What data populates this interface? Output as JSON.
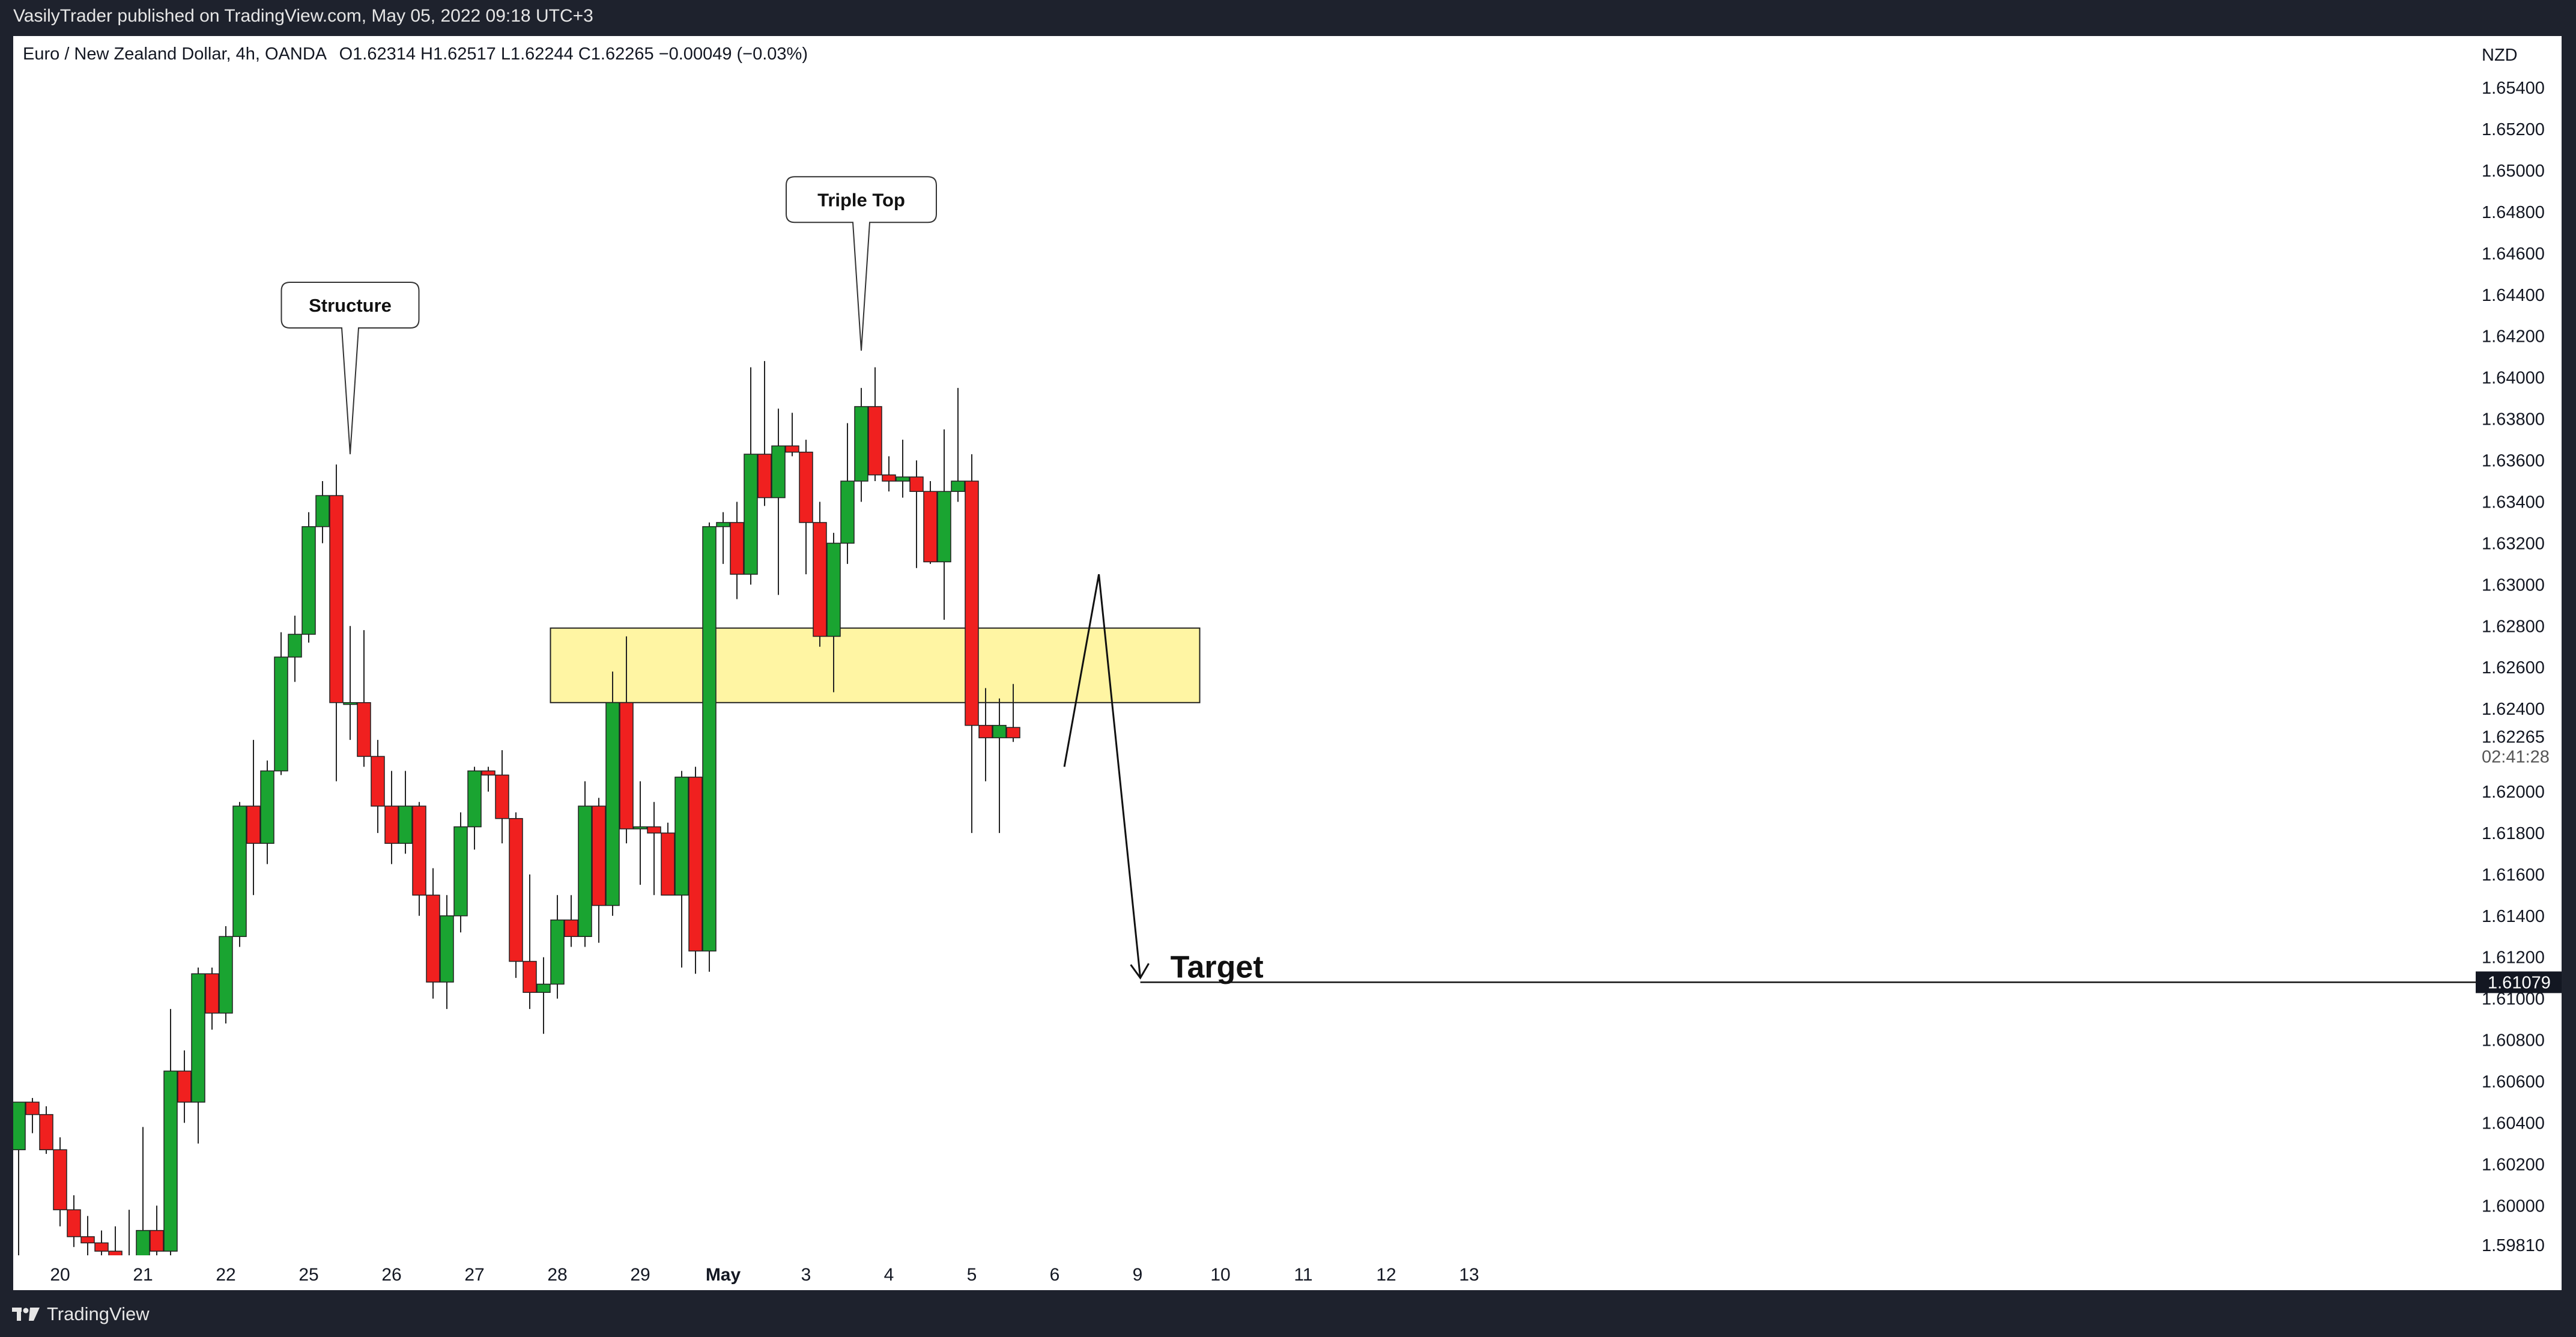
{
  "header": {
    "publish_line": "VasilyTrader published on TradingView.com, May 05, 2022 09:18 UTC+3"
  },
  "legend": {
    "symbol": "Euro / New Zealand Dollar, 4h, OANDA",
    "ohlc": "O1.62314  H1.62517  L1.62244  C1.62265  −0.00049 (−0.03%)"
  },
  "footer": {
    "brand": "TradingView",
    "logo_icon": "tradingview-logo-icon"
  },
  "colors": {
    "up": "#1aa431",
    "down": "#f0201f",
    "zone": "#fff5a3",
    "axis_text": "#131722"
  },
  "chart_data": {
    "type": "candlestick",
    "symbol": "EUR/NZD",
    "interval": "4h",
    "currency": "NZD",
    "ylim": [
      1.5976,
      1.6565
    ],
    "price_ticks": [
      "1.65400",
      "1.65200",
      "1.65000",
      "1.64800",
      "1.64600",
      "1.64400",
      "1.64200",
      "1.64000",
      "1.63800",
      "1.63600",
      "1.63400",
      "1.63200",
      "1.63000",
      "1.62800",
      "1.62600",
      "1.62400",
      "1.62000",
      "1.61800",
      "1.61600",
      "1.61400",
      "1.61200",
      "1.61000",
      "1.60800",
      "1.60600",
      "1.60400",
      "1.60200",
      "1.60000",
      "1.59810"
    ],
    "date_ticks": [
      {
        "label": "20",
        "bar": 3
      },
      {
        "label": "21",
        "bar": 9
      },
      {
        "label": "22",
        "bar": 15
      },
      {
        "label": "25",
        "bar": 21
      },
      {
        "label": "26",
        "bar": 27
      },
      {
        "label": "27",
        "bar": 33
      },
      {
        "label": "28",
        "bar": 39
      },
      {
        "label": "29",
        "bar": 45
      },
      {
        "label": "May",
        "bar": 51,
        "bold": true
      },
      {
        "label": "3",
        "bar": 57
      },
      {
        "label": "4",
        "bar": 63
      },
      {
        "label": "5",
        "bar": 69
      },
      {
        "label": "6",
        "bar": 75
      },
      {
        "label": "9",
        "bar": 81
      },
      {
        "label": "10",
        "bar": 87
      },
      {
        "label": "11",
        "bar": 93
      },
      {
        "label": "12",
        "bar": 99
      },
      {
        "label": "13",
        "bar": 105
      }
    ],
    "candles": [
      [
        1.6027,
        1.605,
        1.5975,
        1.605
      ],
      [
        1.605,
        1.6052,
        1.6035,
        1.6044
      ],
      [
        1.6044,
        1.6048,
        1.6025,
        1.6027
      ],
      [
        1.6027,
        1.6033,
        1.599,
        1.5998
      ],
      [
        1.5998,
        1.6005,
        1.598,
        1.5985
      ],
      [
        1.5985,
        1.5995,
        1.5975,
        1.5982
      ],
      [
        1.5982,
        1.5988,
        1.5975,
        1.5978
      ],
      [
        1.5978,
        1.599,
        1.597,
        1.5975
      ],
      [
        1.5975,
        1.5998,
        1.5968,
        1.5975
      ],
      [
        1.5975,
        1.6038,
        1.597,
        1.5988
      ],
      [
        1.5988,
        1.6,
        1.5975,
        1.5978
      ],
      [
        1.5978,
        1.6095,
        1.5975,
        1.6065
      ],
      [
        1.6065,
        1.6075,
        1.604,
        1.605
      ],
      [
        1.605,
        1.6115,
        1.603,
        1.6112
      ],
      [
        1.6112,
        1.6115,
        1.6085,
        1.6093
      ],
      [
        1.6093,
        1.6135,
        1.6088,
        1.613
      ],
      [
        1.613,
        1.6195,
        1.6125,
        1.6193
      ],
      [
        1.6193,
        1.6225,
        1.615,
        1.6175
      ],
      [
        1.6175,
        1.6215,
        1.6165,
        1.621
      ],
      [
        1.621,
        1.6277,
        1.6208,
        1.6265
      ],
      [
        1.6265,
        1.6285,
        1.6253,
        1.6276
      ],
      [
        1.6276,
        1.6335,
        1.6272,
        1.6328
      ],
      [
        1.6328,
        1.635,
        1.632,
        1.6343
      ],
      [
        1.6343,
        1.6358,
        1.6205,
        1.6243
      ],
      [
        1.6243,
        1.628,
        1.6225,
        1.6243
      ],
      [
        1.6243,
        1.6278,
        1.6212,
        1.6217
      ],
      [
        1.6217,
        1.6225,
        1.618,
        1.6193
      ],
      [
        1.6193,
        1.621,
        1.6165,
        1.6175
      ],
      [
        1.6175,
        1.621,
        1.617,
        1.6193
      ],
      [
        1.6193,
        1.6195,
        1.614,
        1.615
      ],
      [
        1.615,
        1.6163,
        1.61,
        1.6108
      ],
      [
        1.6108,
        1.615,
        1.6095,
        1.614
      ],
      [
        1.614,
        1.619,
        1.6132,
        1.6183
      ],
      [
        1.6183,
        1.6212,
        1.6172,
        1.621
      ],
      [
        1.621,
        1.6212,
        1.62,
        1.6208
      ],
      [
        1.6208,
        1.622,
        1.6175,
        1.6187
      ],
      [
        1.6187,
        1.619,
        1.611,
        1.6118
      ],
      [
        1.6118,
        1.616,
        1.6095,
        1.6103
      ],
      [
        1.6103,
        1.612,
        1.6083,
        1.6107
      ],
      [
        1.6107,
        1.615,
        1.61,
        1.6138
      ],
      [
        1.6138,
        1.615,
        1.6125,
        1.613
      ],
      [
        1.613,
        1.6205,
        1.6125,
        1.6193
      ],
      [
        1.6193,
        1.6197,
        1.6127,
        1.6145
      ],
      [
        1.6145,
        1.6258,
        1.614,
        1.6243
      ],
      [
        1.6243,
        1.6275,
        1.6175,
        1.6182
      ],
      [
        1.6182,
        1.6205,
        1.6155,
        1.6183
      ],
      [
        1.6183,
        1.6195,
        1.615,
        1.618
      ],
      [
        1.618,
        1.6185,
        1.615,
        1.615
      ],
      [
        1.615,
        1.621,
        1.6115,
        1.6207
      ],
      [
        1.6207,
        1.6212,
        1.6112,
        1.6123
      ],
      [
        1.6123,
        1.633,
        1.6113,
        1.6328
      ],
      [
        1.6328,
        1.6335,
        1.631,
        1.633
      ],
      [
        1.633,
        1.634,
        1.6293,
        1.6305
      ],
      [
        1.6305,
        1.6405,
        1.63,
        1.6363
      ],
      [
        1.6363,
        1.6408,
        1.6338,
        1.6342
      ],
      [
        1.6342,
        1.6385,
        1.6295,
        1.6367
      ],
      [
        1.6367,
        1.6383,
        1.6362,
        1.6364
      ],
      [
        1.6364,
        1.637,
        1.6305,
        1.633
      ],
      [
        1.633,
        1.634,
        1.627,
        1.6275
      ],
      [
        1.6275,
        1.6325,
        1.6248,
        1.632
      ],
      [
        1.632,
        1.6378,
        1.631,
        1.635
      ],
      [
        1.635,
        1.6395,
        1.634,
        1.6386
      ],
      [
        1.6386,
        1.6405,
        1.635,
        1.6353
      ],
      [
        1.6353,
        1.6362,
        1.6345,
        1.635
      ],
      [
        1.635,
        1.637,
        1.6342,
        1.6352
      ],
      [
        1.6352,
        1.636,
        1.6308,
        1.6345
      ],
      [
        1.6345,
        1.635,
        1.631,
        1.6311
      ],
      [
        1.6311,
        1.6375,
        1.6283,
        1.6345
      ],
      [
        1.6345,
        1.6395,
        1.634,
        1.635
      ],
      [
        1.635,
        1.6363,
        1.618,
        1.6232
      ],
      [
        1.6232,
        1.625,
        1.6205,
        1.6226
      ],
      [
        1.6226,
        1.6245,
        1.618,
        1.6232
      ],
      [
        1.6231,
        1.6252,
        1.6224,
        1.6226
      ]
    ],
    "zone": {
      "bar_from": 38.5,
      "bar_to": 85.5,
      "price_low": 1.6243,
      "price_high": 1.6279,
      "color": "#fff5a3"
    },
    "projection": {
      "path": [
        [
          75.7,
          1.6212
        ],
        [
          78.2,
          1.6305
        ],
        [
          81.2,
          1.611
        ]
      ],
      "target_line": {
        "price": 1.61079,
        "bar_from": 81.2,
        "label": "Target"
      }
    },
    "callouts": [
      {
        "text": "Structure",
        "bar": 24,
        "pointer_price": 1.6363,
        "box_price": 1.6435
      },
      {
        "text": "Triple Top",
        "bar": 61,
        "pointer_price": 1.6413,
        "box_price": 1.6486
      }
    ],
    "price_labels": [
      {
        "text": "NZD",
        "price": 1.6556
      },
      {
        "text": "1.62265",
        "price": 1.62265
      },
      {
        "text": "02:41:28",
        "price": 1.6217
      },
      {
        "text": "1.61079",
        "price": 1.61079,
        "boxed": true
      }
    ]
  }
}
